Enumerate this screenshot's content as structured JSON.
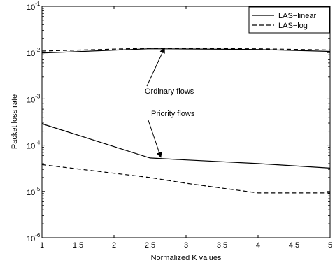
{
  "chart_data": {
    "type": "line",
    "xlabel": "Normalized K values",
    "ylabel": "Packet loss rate",
    "x_scale": "linear",
    "y_scale": "log",
    "xlim": [
      1,
      5
    ],
    "ylim": [
      1e-06,
      0.1
    ],
    "x_ticks": [
      "1",
      "1.5",
      "2",
      "2.5",
      "3",
      "3.5",
      "4",
      "4.5",
      "5"
    ],
    "y_ticks": [
      {
        "base": "10",
        "exp": "-6",
        "value": 1e-06
      },
      {
        "base": "10",
        "exp": "-5",
        "value": 1e-05
      },
      {
        "base": "10",
        "exp": "-4",
        "value": 0.0001
      },
      {
        "base": "10",
        "exp": "-3",
        "value": 0.001
      },
      {
        "base": "10",
        "exp": "-2",
        "value": 0.01
      },
      {
        "base": "10",
        "exp": "-1",
        "value": 0.1
      }
    ],
    "grid": false,
    "legend_position": "top-right",
    "series": [
      {
        "name": "LAS−linear",
        "style": "solid",
        "color": "#000000",
        "groups": [
          {
            "label": "Ordinary flows",
            "x": [
              1,
              2.5,
              3,
              4,
              5
            ],
            "y": [
              0.0098,
              0.0121,
              0.012,
              0.0117,
              0.0106
            ]
          },
          {
            "label": "Priority flows",
            "x": [
              1,
              2.5,
              3,
              4,
              5
            ],
            "y": [
              0.00029,
              5.3e-05,
              4.8e-05,
              4e-05,
              3.2e-05
            ]
          }
        ]
      },
      {
        "name": "LAS−log",
        "style": "dashed",
        "color": "#000000",
        "groups": [
          {
            "label": "Ordinary flows",
            "x": [
              1,
              2.5,
              3,
              4,
              5
            ],
            "y": [
              0.0108,
              0.0125,
              0.0122,
              0.0121,
              0.0114
            ]
          },
          {
            "label": "Priority flows",
            "x": [
              1,
              2.5,
              3,
              4,
              5
            ],
            "y": [
              3.8e-05,
              2e-05,
              1.5e-05,
              9.3e-06,
              9.3e-06
            ]
          }
        ]
      }
    ],
    "annotations": [
      {
        "text": "Ordinary flows",
        "arrow_to": {
          "x": 2.7,
          "y": 0.0125
        }
      },
      {
        "text": "Priority  flows",
        "arrow_to": {
          "x": 2.65,
          "y": 5.5e-05
        }
      }
    ]
  }
}
